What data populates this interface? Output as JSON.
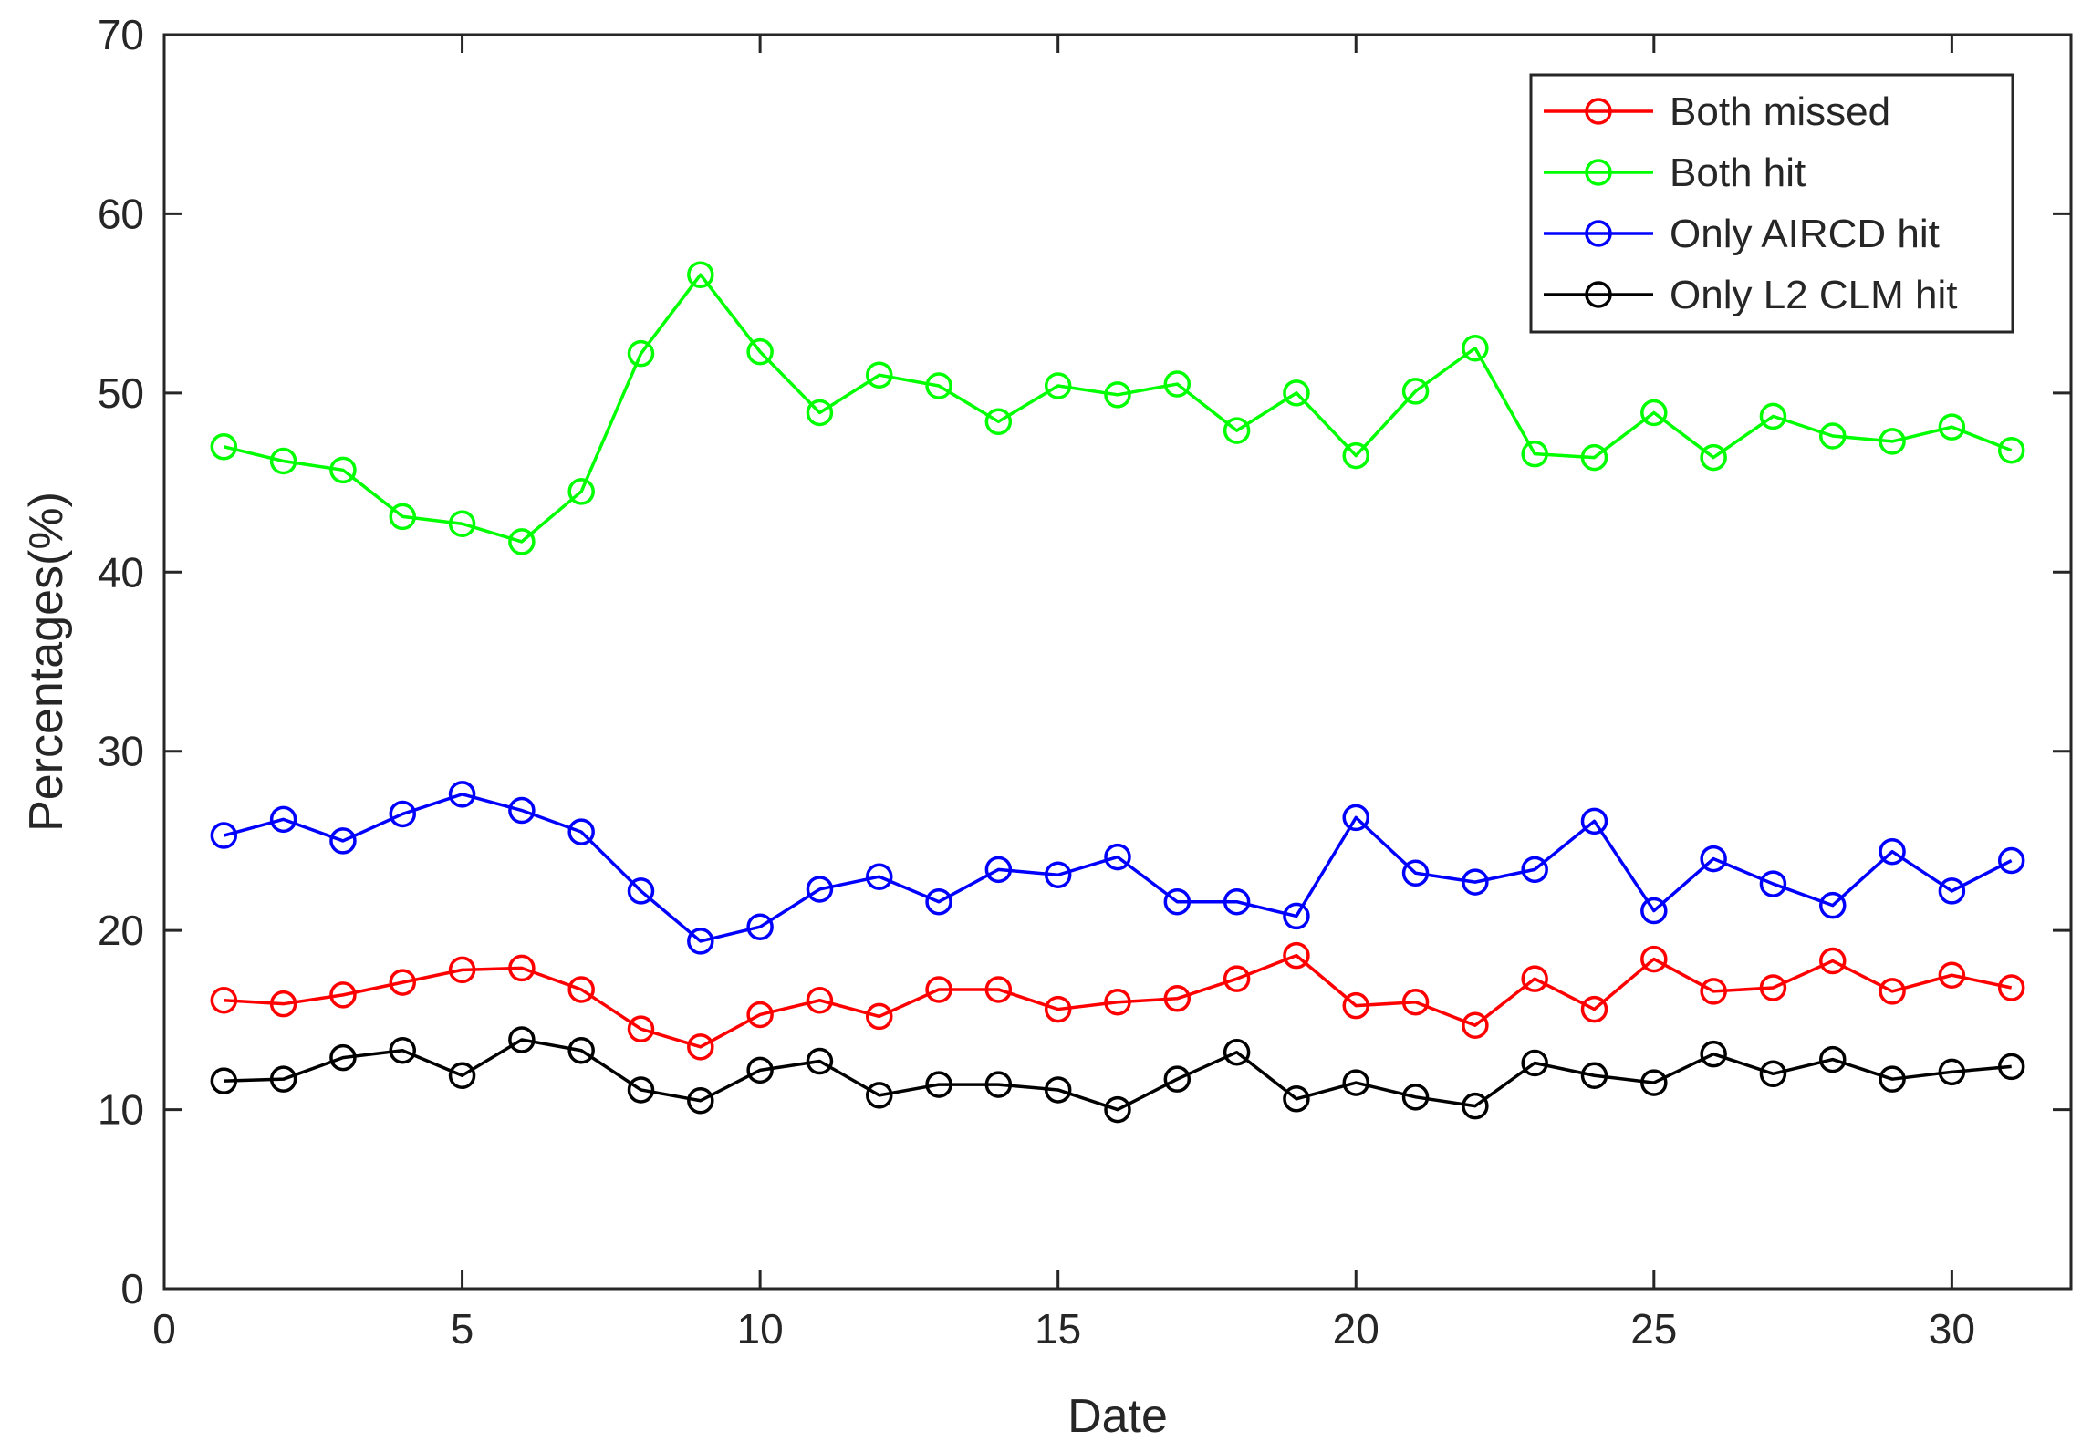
{
  "chart_data": {
    "type": "line",
    "title": "",
    "xlabel": "Date",
    "ylabel": "Percentages(%)",
    "xlim": [
      0,
      32
    ],
    "ylim": [
      0,
      70
    ],
    "xticks": [
      0,
      5,
      10,
      15,
      20,
      25,
      30
    ],
    "yticks": [
      0,
      10,
      20,
      30,
      40,
      50,
      60,
      70
    ],
    "grid": false,
    "legend_position": "top-right",
    "x": [
      1,
      2,
      3,
      4,
      5,
      6,
      7,
      8,
      9,
      10,
      11,
      12,
      13,
      14,
      15,
      16,
      17,
      18,
      19,
      20,
      21,
      22,
      23,
      24,
      25,
      26,
      27,
      28,
      29,
      30,
      31
    ],
    "series": [
      {
        "name": "Both missed",
        "color": "#ff0000",
        "values": [
          16.1,
          15.9,
          16.4,
          17.1,
          17.8,
          17.9,
          16.7,
          14.5,
          13.5,
          15.3,
          16.1,
          15.2,
          16.7,
          16.7,
          15.6,
          16.0,
          16.2,
          17.3,
          18.6,
          15.8,
          16.0,
          14.7,
          17.3,
          15.6,
          18.4,
          16.6,
          16.8,
          18.3,
          16.6,
          17.5,
          16.8
        ]
      },
      {
        "name": "Both hit",
        "color": "#00ff00",
        "values": [
          47.0,
          46.2,
          45.7,
          43.1,
          42.7,
          41.7,
          44.5,
          52.2,
          56.6,
          52.3,
          48.9,
          51.0,
          50.4,
          48.4,
          50.4,
          49.9,
          50.5,
          47.9,
          50.0,
          46.5,
          50.1,
          52.5,
          46.6,
          46.4,
          48.9,
          46.4,
          48.7,
          47.6,
          47.3,
          48.1,
          46.8
        ]
      },
      {
        "name": "Only AIRCD hit",
        "color": "#0000ff",
        "values": [
          25.3,
          26.2,
          25.0,
          26.5,
          27.6,
          26.7,
          25.5,
          22.2,
          19.4,
          20.2,
          22.3,
          23.0,
          21.6,
          23.4,
          23.1,
          24.1,
          21.6,
          21.6,
          20.8,
          26.3,
          23.2,
          22.7,
          23.4,
          26.1,
          21.1,
          24.0,
          22.6,
          21.4,
          24.4,
          22.2,
          23.9
        ]
      },
      {
        "name": "Only L2 CLM hit",
        "color": "#000000",
        "values": [
          11.6,
          11.7,
          12.9,
          13.3,
          11.9,
          13.9,
          13.3,
          11.1,
          10.5,
          12.2,
          12.7,
          10.8,
          11.4,
          11.4,
          11.1,
          10.0,
          11.7,
          13.2,
          10.6,
          11.5,
          10.7,
          10.2,
          12.6,
          11.9,
          11.5,
          13.1,
          12.0,
          12.8,
          11.7,
          12.1,
          12.4
        ]
      }
    ]
  }
}
